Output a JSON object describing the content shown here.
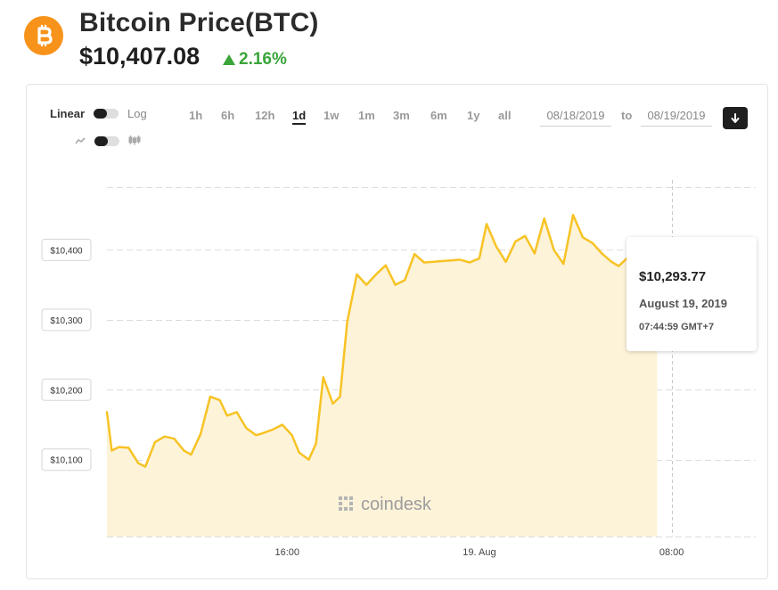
{
  "header": {
    "title": "Bitcoin Price(BTC)",
    "price": "$10,407.08",
    "change": "2.16%",
    "logo_icon": "bitcoin-icon",
    "logo_color": "#f7931a",
    "change_color": "#3aa53a"
  },
  "controls": {
    "scale_linear": "Linear",
    "scale_log": "Log",
    "ranges": [
      "1h",
      "6h",
      "12h",
      "1d",
      "1w",
      "1m",
      "3m",
      "6m",
      "1y",
      "all"
    ],
    "active_range": "1d",
    "date_from": "08/18/2019",
    "date_to_label": "to",
    "date_to": "08/19/2019",
    "chart_type_icons": [
      "line-chart-icon",
      "candlestick-icon"
    ],
    "download_icon": "download-arrow-icon"
  },
  "tooltip": {
    "price": "$10,293.77",
    "date": "August 19, 2019",
    "time": "07:44:59 GMT+7"
  },
  "watermark": "coindesk",
  "chart_data": {
    "type": "area",
    "line_color": "#f7c325",
    "fill_color": "#fdf3d9",
    "y_ticks": [
      10100,
      10200,
      10300,
      10400
    ],
    "y_tick_labels": [
      "$10,100",
      "$10,200",
      "$10,300",
      "$10,400"
    ],
    "x_ticks": [
      {
        "t": 14,
        "label": "16:00"
      },
      {
        "t": 22,
        "label": "19. Aug"
      },
      {
        "t": 30,
        "label": "08:00"
      }
    ],
    "x_range_hours": [
      6.5,
      33.5
    ],
    "ylim": [
      9990,
      10500
    ],
    "cursor_t": 30,
    "grid": true,
    "series": [
      {
        "x": [
          6.5,
          6.7,
          7.0,
          7.4,
          7.8,
          8.1,
          8.5,
          8.9,
          9.3,
          9.7,
          10.0,
          10.4,
          10.8,
          11.2,
          11.5,
          11.9,
          12.3,
          12.7,
          13.0,
          13.4,
          13.8,
          14.2,
          14.5,
          14.9,
          15.2,
          15.5,
          15.9,
          16.2,
          16.5,
          16.9,
          17.3,
          17.7,
          18.1,
          18.5,
          18.9,
          19.3,
          19.7,
          20.1,
          20.4,
          20.8,
          21.2,
          21.6,
          22.0,
          22.3,
          22.7,
          23.1,
          23.5,
          23.9,
          24.3,
          24.7,
          25.1,
          25.5,
          25.9,
          26.3,
          26.7,
          27.1,
          27.5,
          27.8,
          28.2,
          28.6,
          29.0,
          29.4
        ],
        "y": [
          10168,
          10113,
          10118,
          10117,
          10095,
          10090,
          10125,
          10133,
          10130,
          10113,
          10107,
          10137,
          10190,
          10185,
          10163,
          10168,
          10145,
          10135,
          10138,
          10143,
          10150,
          10135,
          10110,
          10100,
          10123,
          10218,
          10180,
          10190,
          10297,
          10365,
          10350,
          10365,
          10378,
          10350,
          10357,
          10394,
          10382,
          10383,
          10384,
          10385,
          10386,
          10382,
          10388,
          10437,
          10405,
          10383,
          10412,
          10420,
          10395,
          10445,
          10400,
          10380,
          10450,
          10418,
          10410,
          10395,
          10383,
          10377,
          10390,
          10360,
          10365,
          10370
        ]
      }
    ]
  }
}
